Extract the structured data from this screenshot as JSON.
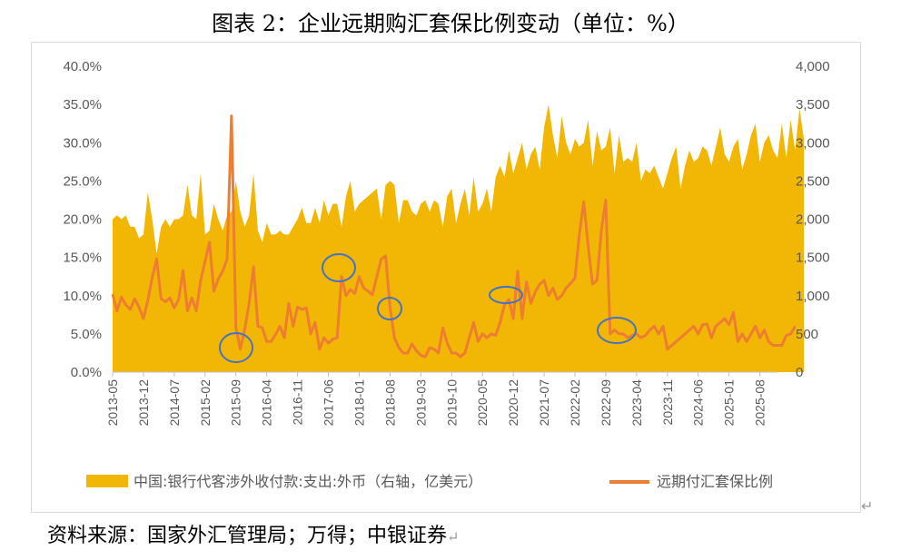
{
  "title": "图表 2：企业远期购汇套保比例变动（单位：%）",
  "source": "资料来源：国家外汇管理局；万得；中银证券",
  "return_mark": "↵",
  "colors": {
    "area": "#F2B705",
    "line": "#ED7D31",
    "circle": "#4472C4",
    "axis_text": "#595959",
    "grid": "#d9d9d9"
  },
  "chart_data": {
    "type": "area",
    "left_axis": {
      "ticks": [
        "0.0%",
        "5.0%",
        "10.0%",
        "15.0%",
        "20.0%",
        "25.0%",
        "30.0%",
        "35.0%",
        "40.0%"
      ],
      "ylim": [
        0,
        40
      ]
    },
    "right_axis": {
      "ticks": [
        "0",
        "500",
        "1,000",
        "1,500",
        "2,000",
        "2,500",
        "3,000",
        "3,500",
        "4,000"
      ],
      "ylim": [
        0,
        4000
      ]
    },
    "x_tick_labels": [
      "2013-05",
      "2013-12",
      "2014-07",
      "2015-02",
      "2015-09",
      "2016-04",
      "2016-11",
      "2017-06",
      "2018-01",
      "2018-08",
      "2019-03",
      "2019-10",
      "2020-05",
      "2020-12",
      "2021-07",
      "2022-02",
      "2022-09",
      "2023-04",
      "2023-11",
      "2024-06",
      "2025-01",
      "2025-08"
    ],
    "x_start": "2013-05",
    "x_end": "2025-12",
    "series": [
      {
        "name": "中国:银行代客涉外收付款:支出:外币（右轴，亿美元）",
        "axis": "right",
        "kind": "area",
        "values": [
          2000,
          2050,
          2000,
          2050,
          1900,
          1900,
          1750,
          1800,
          2350,
          2000,
          1550,
          1900,
          2000,
          1900,
          2000,
          2000,
          2050,
          2450,
          2050,
          2000,
          2600,
          1800,
          1850,
          2200,
          2000,
          1850,
          2050,
          2100,
          2500,
          2100,
          1900,
          2050,
          2600,
          1850,
          1700,
          1950,
          1800,
          1800,
          1850,
          1800,
          1800,
          1900,
          2000,
          2150,
          1950,
          1950,
          2150,
          1950,
          2250,
          2050,
          2200,
          2200,
          1900,
          2300,
          2500,
          2100,
          2200,
          2250,
          2300,
          2350,
          2400,
          2000,
          2450,
          2500,
          2450,
          1950,
          2250,
          2250,
          2100,
          2050,
          2200,
          2250,
          2100,
          2250,
          2200,
          1900,
          2300,
          2400,
          1950,
          2200,
          2400,
          2050,
          2550,
          2100,
          2200,
          2400,
          2100,
          2550,
          2700,
          2550,
          2900,
          2600,
          2800,
          3000,
          2650,
          2850,
          2950,
          2650,
          3200,
          3500,
          3100,
          2800,
          3350,
          3000,
          2850,
          3050,
          2950,
          3000,
          3300,
          2700,
          3150,
          2900,
          2950,
          3200,
          2600,
          3100,
          2750,
          2800,
          2750,
          3000,
          2500,
          2650,
          2600,
          2700,
          2550,
          2400,
          2600,
          2800,
          2950,
          2400,
          2700,
          2900,
          2750,
          2800,
          2950,
          2900,
          2700,
          2950,
          3200,
          2850,
          2750,
          2950,
          3050,
          2650,
          2850,
          3100,
          3250,
          2750,
          3000,
          3100,
          2900,
          2800,
          3250,
          2800,
          3300,
          2900,
          3450,
          3050
        ]
      },
      {
        "name": "远期付汇套保比例",
        "axis": "left",
        "kind": "line",
        "values": [
          10.2,
          8.0,
          9.8,
          8.8,
          8.2,
          9.6,
          8.5,
          7.0,
          9.4,
          12.4,
          14.8,
          9.6,
          9.2,
          9.7,
          8.4,
          9.5,
          13.3,
          8.0,
          9.7,
          8.0,
          12.0,
          14.5,
          17.0,
          10.6,
          12.2,
          13.2,
          14.8,
          33.5,
          5.8,
          3.0,
          5.6,
          9.0,
          13.8,
          6.0,
          5.8,
          4.0,
          4.0,
          4.9,
          6.0,
          4.5,
          9.0,
          6.0,
          8.5,
          8.2,
          8.4,
          5.0,
          6.5,
          3.0,
          4.5,
          3.8,
          4.3,
          4.5,
          12.5,
          10.0,
          10.8,
          10.3,
          12.5,
          11.0,
          10.6,
          10.1,
          12.5,
          14.8,
          15.2,
          8.5,
          4.5,
          3.2,
          2.5,
          2.5,
          3.7,
          2.8,
          2.2,
          2.0,
          3.2,
          3.0,
          2.5,
          5.8,
          3.8,
          2.5,
          2.5,
          2.0,
          2.5,
          4.5,
          6.5,
          4.0,
          5.0,
          4.5,
          5.0,
          4.8,
          6.5,
          8.8,
          9.5,
          7.0,
          13.2,
          7.0,
          11.8,
          9.0,
          10.5,
          11.5,
          12.0,
          10.0,
          11.0,
          9.5,
          10.0,
          11.0,
          11.6,
          12.3,
          18.0,
          22.3,
          16.5,
          11.5,
          12.0,
          18.5,
          22.5,
          5.0,
          5.5,
          5.0,
          5.0,
          4.5,
          4.8,
          5.0,
          4.5,
          4.8,
          5.5,
          6.0,
          5.0,
          6.0,
          3.0,
          3.5,
          4.0,
          4.5,
          5.0,
          5.5,
          6.0,
          5.0,
          6.2,
          6.3,
          4.5,
          6.0,
          6.5,
          7.0,
          6.2,
          7.8,
          4.0,
          5.0,
          4.0,
          5.0,
          6.0,
          4.5,
          5.5,
          4.0,
          3.5,
          3.5,
          3.5,
          4.8,
          5.0,
          6.0
        ]
      }
    ],
    "legend": {
      "position": "bottom"
    },
    "grid": false
  }
}
